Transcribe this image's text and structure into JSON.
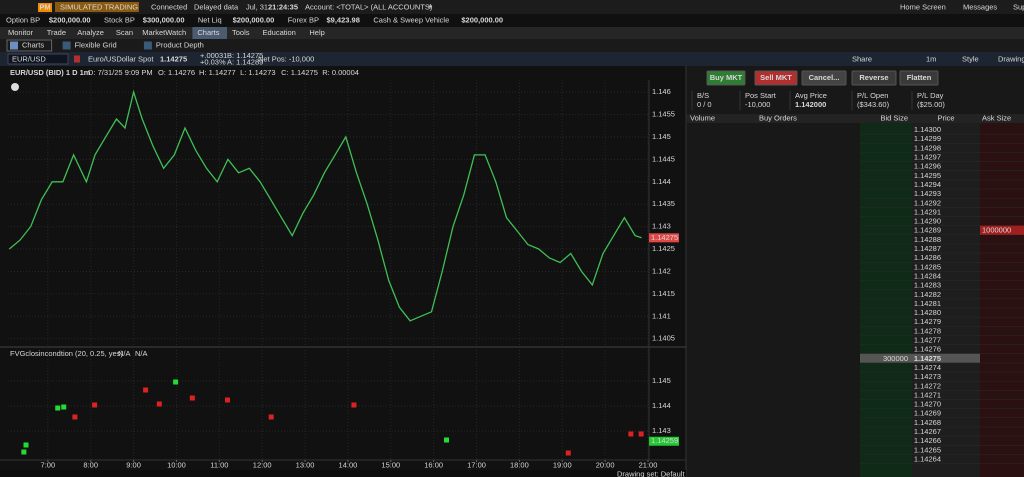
{
  "top_bar": {
    "badge": "PM",
    "mode": "SIMULATED TRADING",
    "status": "Connected",
    "delay": "Delayed data",
    "date": "Jul, 31",
    "time": "21:24:35",
    "account": "Account: <TOTAL> (ALL ACCOUNTS)",
    "plus": "+",
    "links": [
      "Home Screen",
      "Messages",
      "Support / Chat"
    ]
  },
  "balances": [
    {
      "label": "Option BP",
      "value": "$200,000.00"
    },
    {
      "label": "Stock BP",
      "value": "$300,000.00"
    },
    {
      "label": "Net Liq",
      "value": "$200,000.00"
    },
    {
      "label": "Forex BP",
      "value": "$9,423.98"
    },
    {
      "label": "Cash & Sweep Vehicle",
      "value": "$200,000.00"
    }
  ],
  "tabs": [
    "Monitor",
    "Trade",
    "Analyze",
    "Scan",
    "MarketWatch",
    "Charts",
    "Tools",
    "Education",
    "Help"
  ],
  "active_tab": 5,
  "subtabs": [
    "Charts",
    "Flexible Grid",
    "Product Depth"
  ],
  "symbol_bar": {
    "symbol": "EUR/USD",
    "description": "Euro/USDollar Spot",
    "last": "1.14275",
    "change": "+.00031",
    "change_pct": "+0.03%",
    "bid": "B: 1.14275",
    "ask": "A: 1.14289",
    "net_pos": "Net Pos: -10,000",
    "tools": [
      "Share",
      "1m",
      "Style",
      "Drawings"
    ]
  },
  "chart_header": {
    "symbol": "EUR/USD (BID) 1 D 1m",
    "details": [
      "D: 7/31/25 9:09 PM",
      "O: 1.14276",
      "H: 1.14277",
      "L: 1.14273",
      "C: 1.14275",
      "R: 0.00004"
    ]
  },
  "study": {
    "name": "FVGclosincondtion (20, 0.25, yes)",
    "values": [
      "N/A",
      "N/A"
    ]
  },
  "order_panel": {
    "buttons": [
      "Buy MKT",
      "Sell MKT",
      "Cancel...",
      "Reverse",
      "Flatten"
    ],
    "stats": [
      {
        "label": "B/S",
        "value": "0 / 0"
      },
      {
        "label": "Pos Start",
        "value": "-10,000"
      },
      {
        "label": "Avg Price",
        "value": "1.142000"
      },
      {
        "label": "P/L Open",
        "value": "($343.60)"
      },
      {
        "label": "P/L Day",
        "value": "($25.00)"
      }
    ]
  },
  "ladder": {
    "columns": [
      "Volume",
      "Buy Orders",
      "Bid Size",
      "Price",
      "Ask Size"
    ],
    "rows": [
      {
        "price": "1.14300"
      },
      {
        "price": "1.14299"
      },
      {
        "price": "1.14298"
      },
      {
        "price": "1.14297"
      },
      {
        "price": "1.14296"
      },
      {
        "price": "1.14295"
      },
      {
        "price": "1.14294"
      },
      {
        "price": "1.14293"
      },
      {
        "price": "1.14292"
      },
      {
        "price": "1.14291"
      },
      {
        "price": "1.14290"
      },
      {
        "price": "1.14289",
        "ask_size": "1000000"
      },
      {
        "price": "1.14288"
      },
      {
        "price": "1.14287"
      },
      {
        "price": "1.14286"
      },
      {
        "price": "1.14285"
      },
      {
        "price": "1.14284"
      },
      {
        "price": "1.14283"
      },
      {
        "price": "1.14282"
      },
      {
        "price": "1.14281"
      },
      {
        "price": "1.14280"
      },
      {
        "price": "1.14279"
      },
      {
        "price": "1.14278"
      },
      {
        "price": "1.14277"
      },
      {
        "price": "1.14276"
      },
      {
        "price": "1.14275",
        "bid_size": "300000"
      },
      {
        "price": "1.14274"
      },
      {
        "price": "1.14273"
      },
      {
        "price": "1.14272"
      },
      {
        "price": "1.14271"
      },
      {
        "price": "1.14270"
      },
      {
        "price": "1.14269"
      },
      {
        "price": "1.14268"
      },
      {
        "price": "1.14267"
      },
      {
        "price": "1.14266"
      },
      {
        "price": "1.14265"
      },
      {
        "price": "1.14264"
      }
    ]
  },
  "footer": "Drawing set: Default",
  "chart_data": [
    {
      "type": "line",
      "color": "#3fbf55",
      "last_value": 1.14275,
      "last_color": "#e04848",
      "x": [
        6.1,
        6.35,
        6.6,
        6.85,
        7.1,
        7.35,
        7.6,
        7.9,
        8.1,
        8.35,
        8.6,
        8.8,
        9.0,
        9.2,
        9.45,
        9.7,
        9.95,
        10.2,
        10.45,
        10.7,
        10.95,
        11.2,
        11.45,
        11.7,
        11.95,
        12.2,
        12.45,
        12.7,
        12.95,
        13.2,
        13.45,
        13.7,
        13.95,
        14.2,
        14.45,
        14.7,
        14.95,
        15.2,
        15.45,
        15.7,
        15.95,
        16.2,
        16.45,
        16.7,
        16.95,
        17.2,
        17.45,
        17.7,
        17.95,
        18.2,
        18.45,
        18.7,
        18.95,
        19.2,
        19.45,
        19.7,
        19.95,
        20.2,
        20.45,
        20.7,
        20.85
      ],
      "values": [
        1.1425,
        1.1427,
        1.143,
        1.1436,
        1.144,
        1.144,
        1.1446,
        1.144,
        1.1446,
        1.145,
        1.1454,
        1.1452,
        1.146,
        1.1454,
        1.1448,
        1.1443,
        1.1446,
        1.1452,
        1.1447,
        1.1443,
        1.144,
        1.1445,
        1.1442,
        1.1443,
        1.144,
        1.1436,
        1.1432,
        1.1428,
        1.1433,
        1.1437,
        1.1442,
        1.1446,
        1.145,
        1.1442,
        1.1435,
        1.1427,
        1.1418,
        1.1412,
        1.1409,
        1.141,
        1.1411,
        1.142,
        1.143,
        1.1437,
        1.1446,
        1.1446,
        1.144,
        1.1432,
        1.1429,
        1.1426,
        1.1425,
        1.1423,
        1.1422,
        1.1424,
        1.142,
        1.1417,
        1.1424,
        1.1428,
        1.1432,
        1.1428,
        1.14275
      ],
      "xlim": [
        6.07,
        21
      ],
      "xticks": [
        {
          "value": 7,
          "label": "7:00"
        },
        {
          "value": 8,
          "label": "8:00"
        },
        {
          "value": 9,
          "label": "9:00"
        },
        {
          "value": 10,
          "label": "10:00"
        },
        {
          "value": 11,
          "label": "11:00"
        },
        {
          "value": 12,
          "label": "12:00"
        },
        {
          "value": 13,
          "label": "13:00"
        },
        {
          "value": 14,
          "label": "14:00"
        },
        {
          "value": 15,
          "label": "15:00"
        },
        {
          "value": 16,
          "label": "16:00"
        },
        {
          "value": 17,
          "label": "17:00"
        },
        {
          "value": 18,
          "label": "18:00"
        },
        {
          "value": 19,
          "label": "19:00"
        },
        {
          "value": 20,
          "label": "20:00"
        },
        {
          "value": 21,
          "label": "21:00"
        }
      ],
      "ylim": [
        1.14036,
        1.14627
      ],
      "yticks": [
        1.1405,
        1.141,
        1.1415,
        1.142,
        1.1425,
        1.143,
        1.1435,
        1.144,
        1.1445,
        1.145,
        1.1455,
        1.146
      ]
    },
    {
      "type": "scatter",
      "last_value": 1.14259,
      "last_color": "#22c833",
      "xlim": [
        6.07,
        21
      ],
      "ylim": [
        1.14184,
        1.14624
      ],
      "yticks": [
        1.143,
        1.144,
        1.145
      ],
      "series": [
        {
          "color": "#22dd33",
          "x": [
            6.44,
            6.49,
            7.23,
            7.37,
            9.98,
            16.3
          ],
          "values": [
            1.14216,
            1.14244,
            1.14392,
            1.14396,
            1.14496,
            1.14264
          ]
        },
        {
          "color": "#dd2222",
          "x": [
            7.63,
            8.09,
            9.28,
            9.6,
            10.37,
            11.19,
            12.21,
            14.14,
            19.14,
            20.6,
            20.84
          ],
          "values": [
            1.14356,
            1.14404,
            1.14464,
            1.14408,
            1.14432,
            1.14424,
            1.14356,
            1.14404,
            1.14212,
            1.14288,
            1.14288
          ]
        }
      ]
    }
  ]
}
